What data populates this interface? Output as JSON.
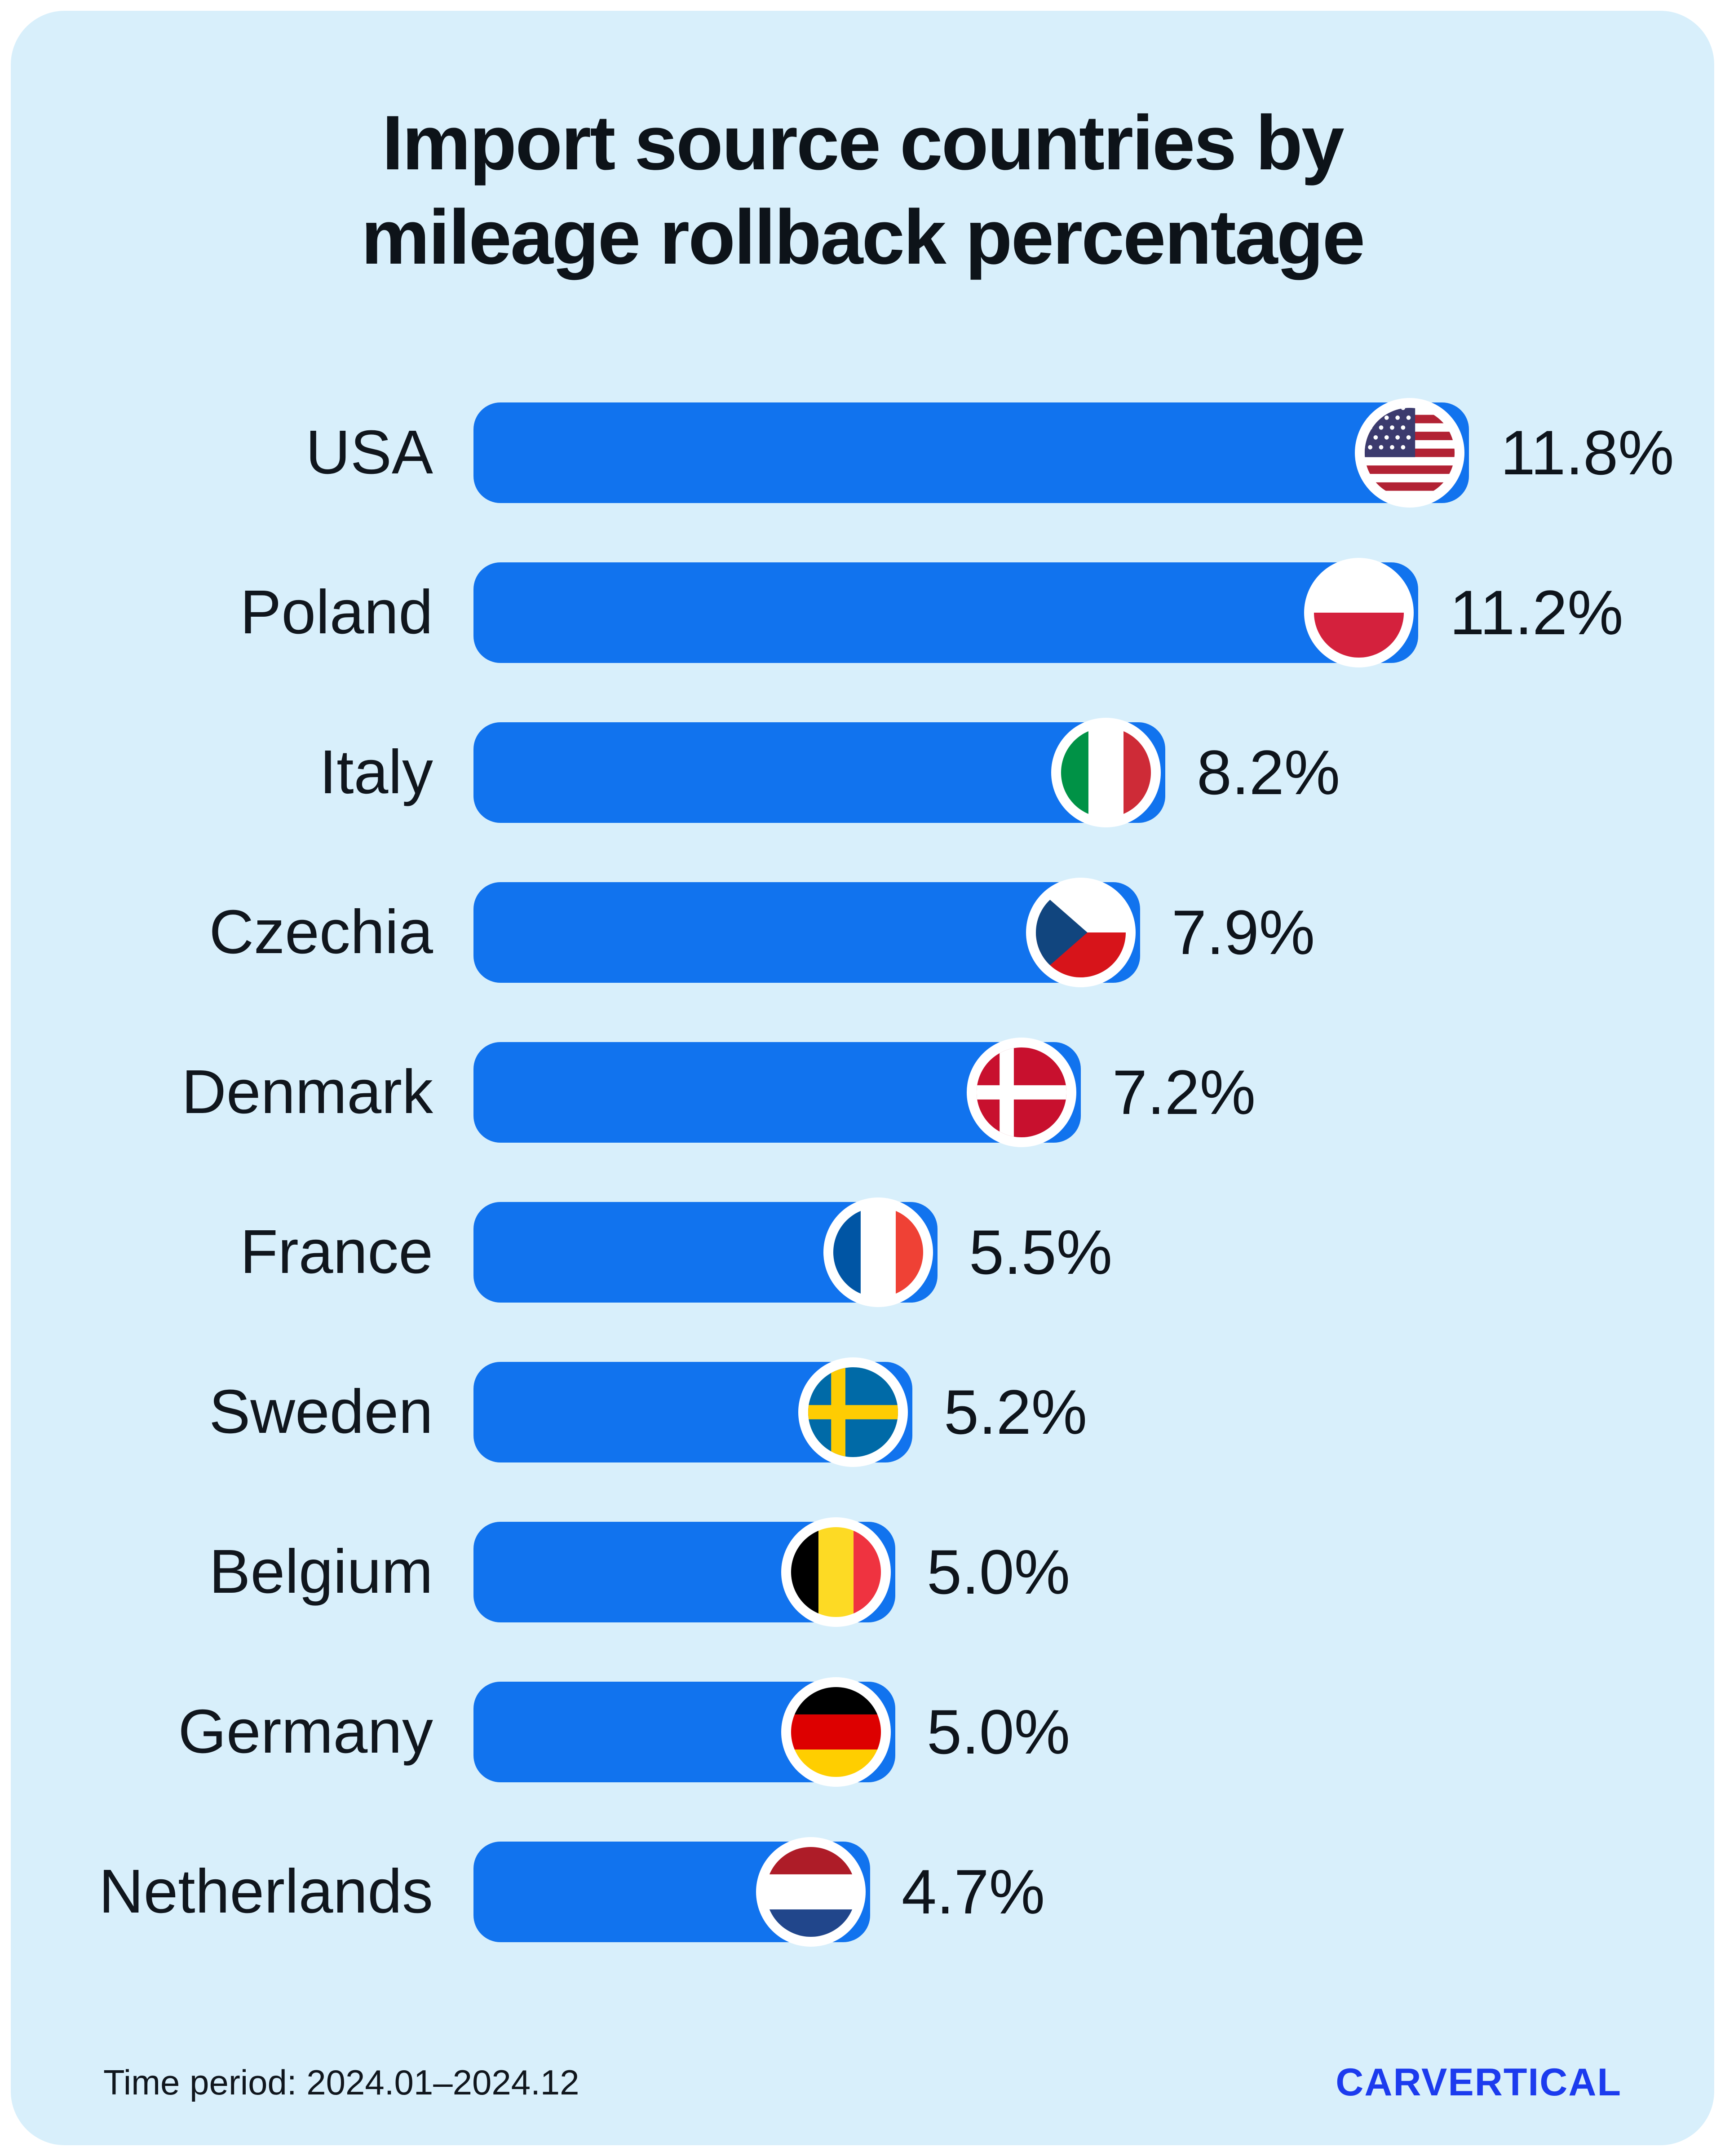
{
  "title": {
    "line1": "Import source countries by",
    "line2": "mileage rollback percentage"
  },
  "chart_data": {
    "type": "bar",
    "orientation": "horizontal",
    "title": "Import source countries by mileage rollback percentage",
    "categories": [
      "USA",
      "Poland",
      "Italy",
      "Czechia",
      "Denmark",
      "France",
      "Sweden",
      "Belgium",
      "Germany",
      "Netherlands"
    ],
    "values": [
      11.8,
      11.2,
      8.2,
      7.9,
      7.2,
      5.5,
      5.2,
      5.0,
      5.0,
      4.7
    ],
    "value_labels": [
      "11.8%",
      "11.2%",
      "8.2%",
      "7.9%",
      "7.2%",
      "5.5%",
      "5.2%",
      "5.0%",
      "5.0%",
      "4.7%"
    ],
    "flags": [
      "usa",
      "poland",
      "italy",
      "czechia",
      "denmark",
      "france",
      "sweden",
      "belgium",
      "germany",
      "netherlands"
    ],
    "xlim": [
      0,
      11.8
    ],
    "grid": false,
    "legend": false
  },
  "footer": {
    "time_period": "Time period: 2024.01–2024.12",
    "brand": "CARVERTICAL"
  },
  "colors": {
    "page_bg": "#FFFFFF",
    "card_bg": "#D8EFFB",
    "bar": "#1173EE",
    "text": "#10161D",
    "brand_blue": "#1C3BEE"
  }
}
